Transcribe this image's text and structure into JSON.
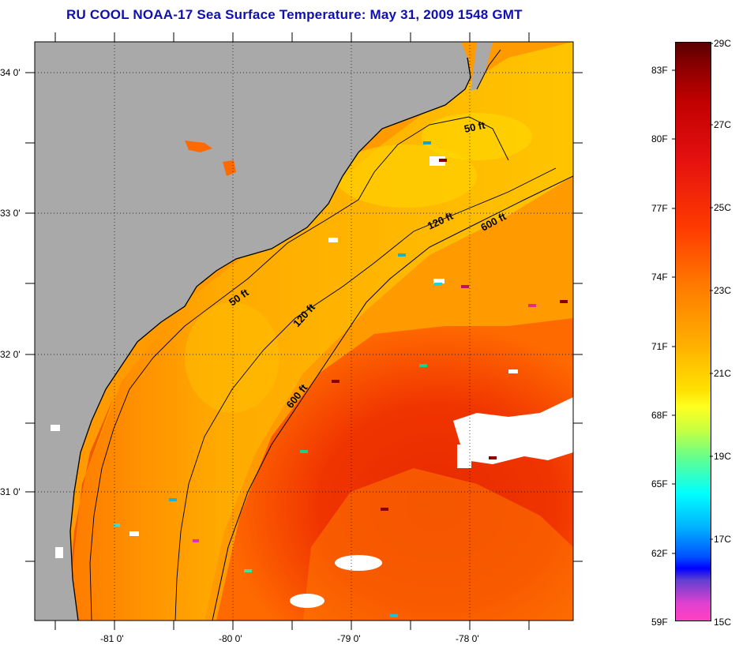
{
  "title": "RU COOL  NOAA-17  Sea Surface Temperature:  May 31, 2009 1548 GMT",
  "map": {
    "lat_labels": [
      "34 0'",
      "33 0'",
      "32 0'",
      "31 0'"
    ],
    "lon_labels": [
      "-81 0'",
      "-80 0'",
      "-79 0'",
      "-78 0'"
    ],
    "contours": [
      "50 ft",
      "120 ft",
      "600 ft",
      "50 ft",
      "120 ft",
      "600 ft"
    ],
    "colors": {
      "land": "#a9a9a9",
      "cloud": "#ffffff",
      "warm": "#ee3300",
      "mid": "#ff8800",
      "cool": "#ffcc00"
    }
  },
  "colorbar": {
    "fahrenheit": [
      "83F",
      "80F",
      "77F",
      "74F",
      "71F",
      "68F",
      "65F",
      "62F",
      "59F"
    ],
    "celsius": [
      "29C",
      "27C",
      "25C",
      "23C",
      "21C",
      "19C",
      "17C",
      "15C"
    ]
  }
}
